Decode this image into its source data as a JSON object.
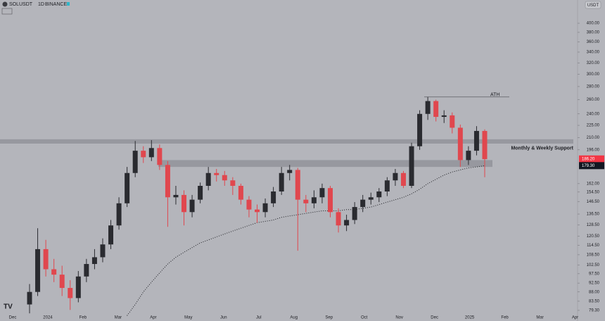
{
  "chart_data": {
    "type": "candlestick",
    "header": {
      "symbol": "SOLUSDT",
      "interval": "1D",
      "exchange": "BINANCE",
      "currency_button": "USDT"
    },
    "scale": "log",
    "ylim": [
      74.7,
      456
    ],
    "yticks": [
      {
        "value": 400,
        "label": "400.00"
      },
      {
        "value": 380,
        "label": "380.00"
      },
      {
        "value": 360,
        "label": "360.00"
      },
      {
        "value": 340,
        "label": "340.00"
      },
      {
        "value": 320,
        "label": "320.00"
      },
      {
        "value": 300,
        "label": "300.00"
      },
      {
        "value": 280,
        "label": "280.00"
      },
      {
        "value": 260,
        "label": "260.00"
      },
      {
        "value": 240,
        "label": "240.00"
      },
      {
        "value": 225,
        "label": "225.00"
      },
      {
        "value": 210,
        "label": "210.00"
      },
      {
        "value": 196,
        "label": "196.00"
      },
      {
        "value": 162,
        "label": "162.00"
      },
      {
        "value": 154.5,
        "label": "154.50"
      },
      {
        "value": 146.5,
        "label": "146.50"
      },
      {
        "value": 136.5,
        "label": "136.50"
      },
      {
        "value": 128.5,
        "label": "128.50"
      },
      {
        "value": 120.5,
        "label": "120.50"
      },
      {
        "value": 114.5,
        "label": "114.50"
      },
      {
        "value": 108.5,
        "label": "108.50"
      },
      {
        "value": 102.5,
        "label": "102.50"
      },
      {
        "value": 97.5,
        "label": "97.50"
      },
      {
        "value": 92.5,
        "label": "92.50"
      },
      {
        "value": 88,
        "label": "88.00"
      },
      {
        "value": 83.5,
        "label": "83.50"
      },
      {
        "value": 79.3,
        "label": "79.30"
      }
    ],
    "x_labels": [
      "Dec",
      "2024",
      "Feb",
      "Mar",
      "Apr",
      "May",
      "Jun",
      "Jul",
      "Aug",
      "Sep",
      "Oct",
      "Nov",
      "Dec",
      "2025",
      "Feb",
      "Mar",
      "Apr"
    ],
    "up_color": "#2a2b30",
    "down_color": "#e0474e",
    "open": [
      82,
      88,
      112,
      100,
      97,
      90,
      85,
      96,
      103,
      107,
      115,
      128,
      145,
      172,
      195,
      188,
      198,
      180,
      150,
      152,
      138,
      148,
      160,
      172,
      170,
      165,
      160,
      148,
      140,
      138,
      145,
      155,
      172,
      175,
      148,
      145,
      150,
      158,
      138,
      128,
      132,
      142,
      148,
      150,
      155,
      165,
      172,
      160,
      200,
      240,
      258,
      236,
      238,
      222,
      185,
      195,
      218
    ],
    "high": [
      92,
      126,
      118,
      106,
      102,
      94,
      99,
      106,
      112,
      119,
      132,
      150,
      178,
      206,
      200,
      207,
      202,
      184,
      160,
      156,
      152,
      163,
      178,
      176,
      174,
      168,
      162,
      151,
      144,
      149,
      159,
      178,
      180,
      177,
      152,
      156,
      162,
      160,
      141,
      136,
      146,
      152,
      154,
      158,
      168,
      176,
      174,
      204,
      245,
      264,
      260,
      245,
      242,
      226,
      200,
      224,
      220
    ],
    "low": [
      78,
      86,
      96,
      93,
      86,
      79.5,
      83,
      93,
      100,
      104,
      112,
      125,
      142,
      168,
      182,
      184,
      175,
      127,
      144,
      128,
      134,
      145,
      156,
      164,
      160,
      152,
      144,
      134,
      130,
      134,
      142,
      152,
      165,
      111,
      138,
      141,
      145,
      134,
      123,
      124,
      129,
      138,
      144,
      146,
      151,
      160,
      158,
      158,
      196,
      232,
      230,
      228,
      215,
      178,
      180,
      190,
      168
    ],
    "close": [
      88,
      112,
      100,
      97,
      90,
      85,
      96,
      103,
      107,
      115,
      128,
      145,
      172,
      195,
      188,
      198,
      180,
      150,
      152,
      138,
      148,
      160,
      172,
      170,
      165,
      160,
      148,
      140,
      138,
      145,
      155,
      172,
      175,
      148,
      145,
      150,
      158,
      138,
      128,
      132,
      142,
      148,
      150,
      155,
      165,
      172,
      160,
      200,
      240,
      258,
      236,
      238,
      222,
      185,
      195,
      218,
      186
    ],
    "ma": {
      "color": "#1c1d22",
      "values": [
        null,
        null,
        null,
        null,
        null,
        null,
        null,
        null,
        null,
        null,
        null,
        null,
        77,
        82,
        88,
        93,
        98,
        103,
        107,
        110,
        113,
        116,
        118,
        120,
        122,
        124,
        126,
        128,
        130,
        131,
        132,
        134,
        135,
        136,
        137,
        138,
        139,
        139,
        139,
        140,
        140,
        141,
        142,
        144,
        146,
        148,
        150,
        153,
        157,
        162,
        166,
        170,
        173,
        175,
        177,
        178,
        179.3
      ]
    },
    "zones": [
      {
        "label": "Monthly & Weekly Support",
        "range": [
          203,
          208
        ]
      },
      {
        "range": [
          178,
          185
        ]
      }
    ],
    "ath": {
      "label": "ATH",
      "value": 264
    },
    "price_labels": [
      {
        "value": 186.2,
        "label": "186.20",
        "color": "#f23645"
      },
      {
        "value": 179.3,
        "label": "179.30",
        "color": "#131722"
      }
    ]
  }
}
